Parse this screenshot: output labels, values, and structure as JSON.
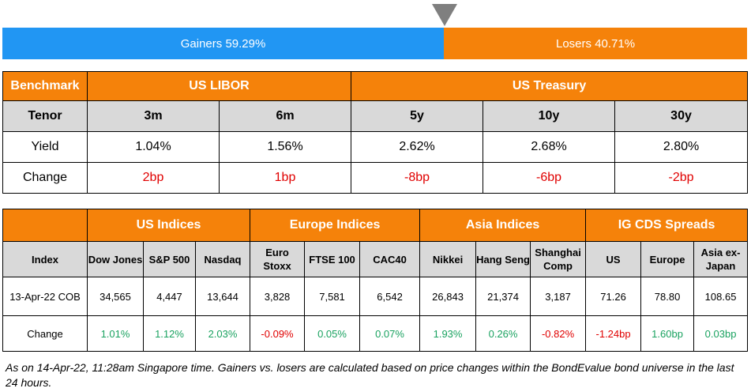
{
  "ratio": {
    "gainers_label": "Gainers 59.29%",
    "losers_label": "Losers 40.71%",
    "gainers_pct": 59.29,
    "losers_pct": 40.71,
    "colors": {
      "gainers": "#2196f3",
      "losers": "#f5820a",
      "marker": "#7f7f7f"
    }
  },
  "rates": {
    "benchmark": "Benchmark",
    "libor": "US LIBOR",
    "treasury": "US Treasury",
    "tenor_label": "Tenor",
    "tenors": [
      "3m",
      "6m",
      "5y",
      "10y",
      "30y"
    ],
    "yield_label": "Yield",
    "yields": [
      "1.04%",
      "1.56%",
      "2.62%",
      "2.68%",
      "2.80%"
    ],
    "change_label": "Change",
    "changes": [
      "2bp",
      "1bp",
      "-8bp",
      "-6bp",
      "-2bp"
    ]
  },
  "indices": {
    "groups": [
      "US Indices",
      "Europe Indices",
      "Asia Indices",
      "IG CDS Spreads"
    ],
    "index_label": "Index",
    "names": [
      "Dow Jones",
      "S&P 500",
      "Nasdaq",
      "Euro Stoxx",
      "FTSE 100",
      "CAC40",
      "Nikkei",
      "Hang Seng",
      "Shanghai Comp",
      "US",
      "Europe",
      "Asia ex-Japan"
    ],
    "date_label": "13-Apr-22 COB",
    "values": [
      "34,565",
      "4,447",
      "13,644",
      "3,828",
      "7,581",
      "6,542",
      "26,843",
      "21,374",
      "3,187",
      "71.26",
      "78.80",
      "108.65"
    ],
    "change_label": "Change",
    "changes": [
      "1.01%",
      "1.12%",
      "2.03%",
      "-0.09%",
      "0.05%",
      "0.07%",
      "1.93%",
      "0.26%",
      "-0.82%",
      "-1.24bp",
      "1.60bp",
      "0.03bp"
    ],
    "colors": {
      "positive": "#1aa260",
      "negative": "#e00000",
      "header": "#f5820a",
      "subheader": "#d9d9d9"
    }
  },
  "footnote": "As on 14-Apr-22, 11:28am Singapore time. Gainers vs. losers are calculated based on price changes within the BondEvalue bond universe in the last 24 hours."
}
